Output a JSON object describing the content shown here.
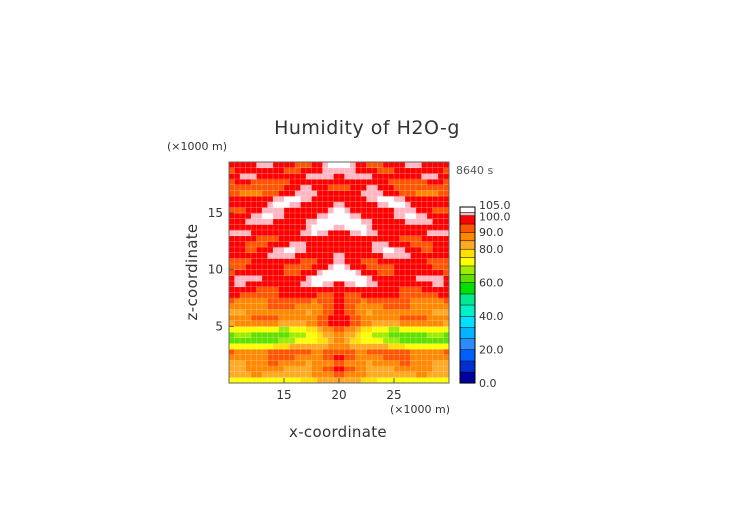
{
  "chart_data": {
    "type": "heatmap",
    "title": "Humidity of H2O-g",
    "xlabel": "x-coordinate",
    "ylabel": "z-coordinate",
    "x_unit": "(×1000 m)",
    "y_unit": "(×1000 m)",
    "time_label": "8640 s",
    "xlim": [
      10,
      30
    ],
    "ylim": [
      0,
      19.5
    ],
    "x_ticks": [
      15,
      20,
      25
    ],
    "y_ticks": [
      5,
      10,
      15
    ],
    "colorbar": {
      "ticks": [
        "0.0",
        "20.0",
        "40.0",
        "60.0",
        "80.0",
        "90.0",
        "100.0",
        "105.0"
      ],
      "tick_values": [
        0,
        20,
        40,
        60,
        80,
        90,
        100,
        105
      ],
      "colors": [
        "#0000a0",
        "#0030d0",
        "#0060ff",
        "#2c8cff",
        "#00b4ff",
        "#00e0ff",
        "#00f0c8",
        "#00e890",
        "#00e000",
        "#60e000",
        "#a0ec00",
        "#ffff00",
        "#ffe000",
        "#ffaa22",
        "#ff8800",
        "#ff5500",
        "#ff0000",
        "#ffb6c1",
        "#ffffff"
      ]
    },
    "grid": true,
    "levels_note": "",
    "profile_by_height": {
      "z": [
        0.3,
        0.7,
        1.2,
        1.7,
        2.2,
        2.7,
        3.2,
        3.7,
        4.2,
        4.7,
        5.2,
        5.7,
        6.2,
        6.7,
        7.2,
        7.7,
        8.2,
        8.7,
        9.2,
        9.7,
        10.2,
        10.7,
        11.2,
        11.7,
        12.2,
        12.7,
        13.2,
        13.7,
        14.2,
        14.7,
        15.2,
        15.7,
        16.2,
        16.7,
        17.2,
        17.7,
        18.2,
        18.7,
        19.2
      ],
      "edge": [
        70,
        82,
        84,
        87,
        88,
        90,
        72,
        60,
        62,
        70,
        86,
        88,
        86,
        88,
        90,
        94,
        96,
        97,
        98,
        96,
        95,
        96,
        98,
        97,
        96,
        97,
        98,
        96,
        97,
        98,
        96,
        98,
        97,
        88,
        90,
        92,
        97,
        96,
        98
      ],
      "mid": [
        76,
        84,
        86,
        88,
        89,
        91,
        80,
        70,
        68,
        74,
        86,
        89,
        88,
        89,
        91,
        95,
        97,
        99,
        100,
        98,
        96,
        97,
        99,
        100,
        98,
        97,
        99,
        100,
        101,
        101,
        100,
        101,
        101,
        100,
        98,
        97,
        99,
        98,
        97
      ],
      "center": [
        80,
        88,
        93,
        88,
        97,
        96,
        92,
        90,
        91,
        92,
        97,
        96,
        95,
        97,
        98,
        99,
        100,
        101,
        102,
        102,
        100,
        99,
        100,
        101,
        99,
        98,
        100,
        101,
        101,
        100,
        101,
        100,
        101,
        99,
        96,
        97,
        99,
        98,
        101
      ]
    }
  }
}
